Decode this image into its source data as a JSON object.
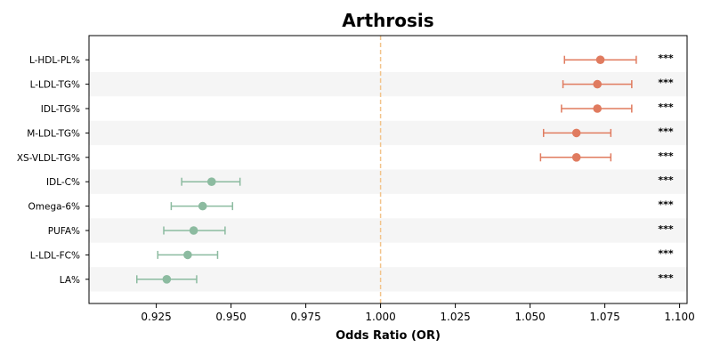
{
  "chart_data": {
    "type": "forest",
    "title": "Arthrosis",
    "xlabel": "Odds Ratio (OR)",
    "ylabel": "",
    "xlim": [
      0.9025,
      1.1025
    ],
    "xticks": [
      "0.925",
      "0.950",
      "0.975",
      "1.000",
      "1.025",
      "1.050",
      "1.075",
      "1.100"
    ],
    "reference_line": 1.0,
    "colors": {
      "positive": "#E07B5F",
      "negative": "#8CBBA0",
      "reference": "#F2C38A",
      "band": "#F5F5F5"
    },
    "rows": [
      {
        "label": "L-HDL-PL%",
        "or": 1.0735,
        "ci_low": 1.0615,
        "ci_high": 1.0855,
        "sig": "***",
        "direction": "positive"
      },
      {
        "label": "L-LDL-TG%",
        "or": 1.0725,
        "ci_low": 1.061,
        "ci_high": 1.084,
        "sig": "***",
        "direction": "positive"
      },
      {
        "label": "IDL-TG%",
        "or": 1.0725,
        "ci_low": 1.0605,
        "ci_high": 1.084,
        "sig": "***",
        "direction": "positive"
      },
      {
        "label": "M-LDL-TG%",
        "or": 1.0655,
        "ci_low": 1.0545,
        "ci_high": 1.077,
        "sig": "***",
        "direction": "positive"
      },
      {
        "label": "XS-VLDL-TG%",
        "or": 1.0655,
        "ci_low": 1.0535,
        "ci_high": 1.077,
        "sig": "***",
        "direction": "positive"
      },
      {
        "label": "IDL-C%",
        "or": 0.9435,
        "ci_low": 0.9335,
        "ci_high": 0.953,
        "sig": "***",
        "direction": "negative"
      },
      {
        "label": "Omega-6%",
        "or": 0.9405,
        "ci_low": 0.93,
        "ci_high": 0.9505,
        "sig": "***",
        "direction": "negative"
      },
      {
        "label": "PUFA%",
        "or": 0.9375,
        "ci_low": 0.9275,
        "ci_high": 0.948,
        "sig": "***",
        "direction": "negative"
      },
      {
        "label": "L-LDL-FC%",
        "or": 0.9355,
        "ci_low": 0.9255,
        "ci_high": 0.9455,
        "sig": "***",
        "direction": "negative"
      },
      {
        "label": "LA%",
        "or": 0.9285,
        "ci_low": 0.9185,
        "ci_high": 0.9385,
        "sig": "***",
        "direction": "negative"
      }
    ]
  }
}
